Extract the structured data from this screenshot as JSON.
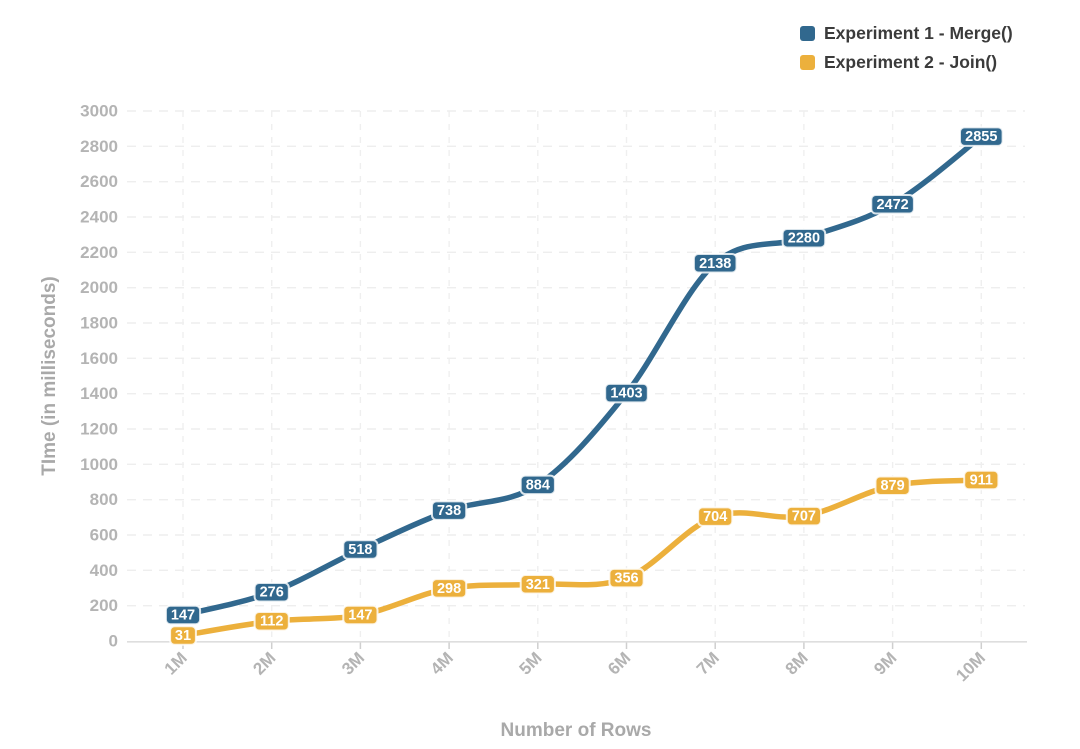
{
  "chart_data": {
    "type": "line",
    "line_style": "smooth",
    "categories": [
      "1M",
      "2M",
      "3M",
      "4M",
      "5M",
      "6M",
      "7M",
      "8M",
      "9M",
      "10M"
    ],
    "series": [
      {
        "name": "Experiment 1 - Merge()",
        "color": "#31688e",
        "values": [
          147,
          276,
          518,
          738,
          884,
          1403,
          2138,
          2280,
          2472,
          2855
        ]
      },
      {
        "name": "Experiment 2 - Join()",
        "color": "#ecb03c",
        "values": [
          31,
          112,
          147,
          298,
          321,
          356,
          704,
          707,
          879,
          911
        ]
      }
    ],
    "title": "",
    "xlabel": "Number of Rows",
    "ylabel": "TIme (in milliseconds)",
    "ylim": [
      0,
      3000
    ],
    "ytick_step": 200,
    "grid": "dashed",
    "legend_position": "top-right",
    "data_labels": true,
    "data_label_text_color": "#ffffff",
    "axis_text_color": "#b4b4b4",
    "axis_title_color": "#a9a9a9",
    "legend_text_color": "#3b3b3b"
  }
}
